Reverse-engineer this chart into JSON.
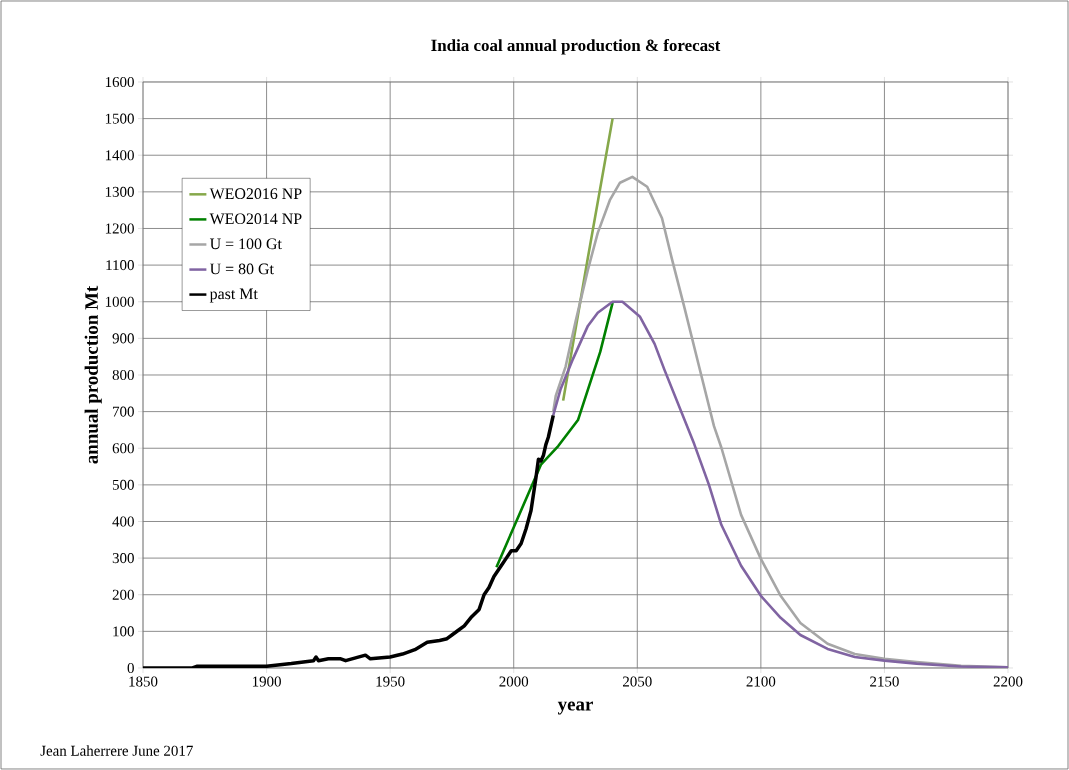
{
  "chart_data": {
    "type": "line",
    "title": "India coal annual production & forecast",
    "xlabel": "year",
    "ylabel": "annual production Mt",
    "xlim": [
      1850,
      2200
    ],
    "xticks": [
      1850,
      1900,
      1950,
      2000,
      2050,
      2100,
      2150,
      2200
    ],
    "ylim": [
      0,
      1600
    ],
    "yticks": [
      0,
      100,
      200,
      300,
      400,
      500,
      600,
      700,
      800,
      900,
      1000,
      1100,
      1200,
      1300,
      1400,
      1500,
      1600
    ],
    "grid": true,
    "legend": "top left",
    "marker": "none",
    "line_style": "solid",
    "annotations": [
      "Jean Laherrere June 2017"
    ],
    "series": [
      {
        "name": "WEO2016 NP",
        "color": "#86a84a",
        "x": [
          2020,
          2030,
          2040
        ],
        "values": [
          730,
          1120,
          1500
        ]
      },
      {
        "name": "WEO2014 NP",
        "color": "#008000",
        "x": [
          1993,
          2011,
          2018,
          2026,
          2035,
          2040
        ],
        "values": [
          275,
          555,
          606,
          677,
          863,
          997
        ]
      },
      {
        "name": "U = 100 Gt",
        "color": "#a6a6a6",
        "x": [
          2016,
          2017,
          2021,
          2025,
          2030,
          2034,
          2039,
          2043,
          2048,
          2054,
          2060,
          2064,
          2069,
          2075,
          2081,
          2084,
          2092,
          2100,
          2108,
          2116,
          2127,
          2138,
          2150,
          2163,
          2181,
          2200
        ],
        "values": [
          700,
          743,
          823,
          945,
          1087,
          1188,
          1279,
          1325,
          1341,
          1314,
          1228,
          1117,
          986,
          823,
          661,
          602,
          418,
          298,
          197,
          123,
          66,
          38,
          25,
          16,
          6,
          2
        ]
      },
      {
        "name": "U = 80 Gt",
        "color": "#8064a2",
        "x": [
          2016,
          2019,
          2024,
          2030,
          2034,
          2040,
          2044,
          2051,
          2057,
          2061,
          2067,
          2073,
          2079,
          2084,
          2092,
          2100,
          2108,
          2116,
          2127,
          2138,
          2150,
          2163,
          2181,
          2200
        ],
        "values": [
          690,
          762,
          844,
          934,
          970,
          1000,
          1000,
          960,
          885,
          814,
          713,
          612,
          500,
          391,
          279,
          197,
          137,
          90,
          52,
          30,
          20,
          12,
          4,
          2
        ]
      },
      {
        "name": "past Mt",
        "color": "#000000",
        "x": [
          1850,
          1870,
          1872,
          1900,
          1910,
          1919,
          1920,
          1921,
          1925,
          1930,
          1932,
          1940,
          1942,
          1950,
          1955,
          1960,
          1965,
          1970,
          1973,
          1975,
          1978,
          1980,
          1983,
          1986,
          1988,
          1990,
          1992,
          1995,
          1997,
          1999,
          2001,
          2003,
          2005,
          2007,
          2009,
          2010,
          2011,
          2012,
          2013,
          2014,
          2016
        ],
        "values": [
          0,
          0,
          5,
          5,
          12,
          20,
          30,
          20,
          25,
          25,
          20,
          35,
          25,
          30,
          38,
          50,
          70,
          75,
          80,
          90,
          105,
          115,
          140,
          160,
          200,
          220,
          250,
          280,
          300,
          320,
          320,
          340,
          380,
          430,
          520,
          570,
          565,
          580,
          610,
          630,
          690
        ]
      }
    ]
  }
}
